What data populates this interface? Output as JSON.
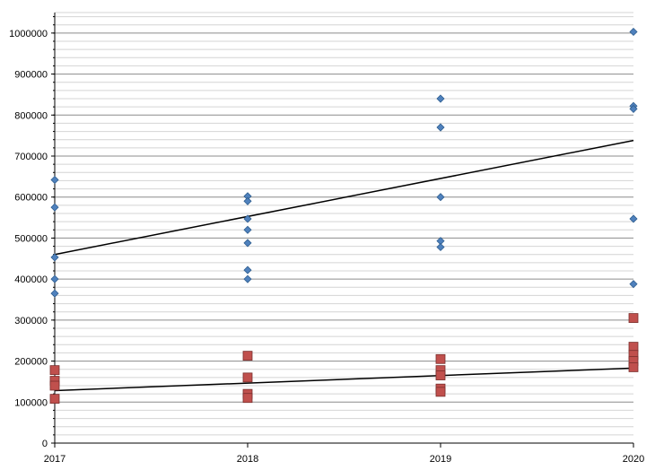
{
  "chart_data": {
    "type": "scatter",
    "title": "",
    "xlabel": "",
    "ylabel": "",
    "x_ticks": [
      2017,
      2018,
      2019,
      2020
    ],
    "y_ticks": [
      0,
      100000,
      200000,
      300000,
      400000,
      500000,
      600000,
      700000,
      800000,
      900000,
      1000000
    ],
    "xlim": [
      2017,
      2020
    ],
    "ylim": [
      0,
      1050000
    ],
    "grid": true,
    "legend": "none",
    "series": [
      {
        "marker": "diamond",
        "color": "#4f81bd",
        "x": [
          2017,
          2017,
          2017,
          2017,
          2017,
          2018,
          2018,
          2018,
          2018,
          2018,
          2018,
          2018,
          2019,
          2019,
          2019,
          2019,
          2019,
          2020,
          2020,
          2020,
          2020,
          2020
        ],
        "y": [
          642000,
          575000,
          453000,
          400000,
          365000,
          602000,
          590000,
          547000,
          520000,
          488000,
          422000,
          400000,
          840000,
          770000,
          600000,
          493000,
          478000,
          1003000,
          822000,
          815000,
          547000,
          388000
        ],
        "trendline": {
          "x": [
            2017,
            2020
          ],
          "y": [
            460000,
            738000
          ]
        }
      },
      {
        "marker": "square",
        "color": "#c0504d",
        "x": [
          2017,
          2017,
          2017,
          2017,
          2018,
          2018,
          2018,
          2018,
          2019,
          2019,
          2019,
          2019,
          2019,
          2020,
          2020,
          2020,
          2020,
          2020
        ],
        "y": [
          178000,
          152000,
          140000,
          108000,
          213000,
          160000,
          120000,
          110000,
          205000,
          178000,
          165000,
          133000,
          125000,
          305000,
          235000,
          215000,
          200000,
          185000
        ],
        "trendline": {
          "x": [
            2017,
            2020
          ],
          "y": [
            128000,
            183000
          ]
        }
      }
    ]
  }
}
